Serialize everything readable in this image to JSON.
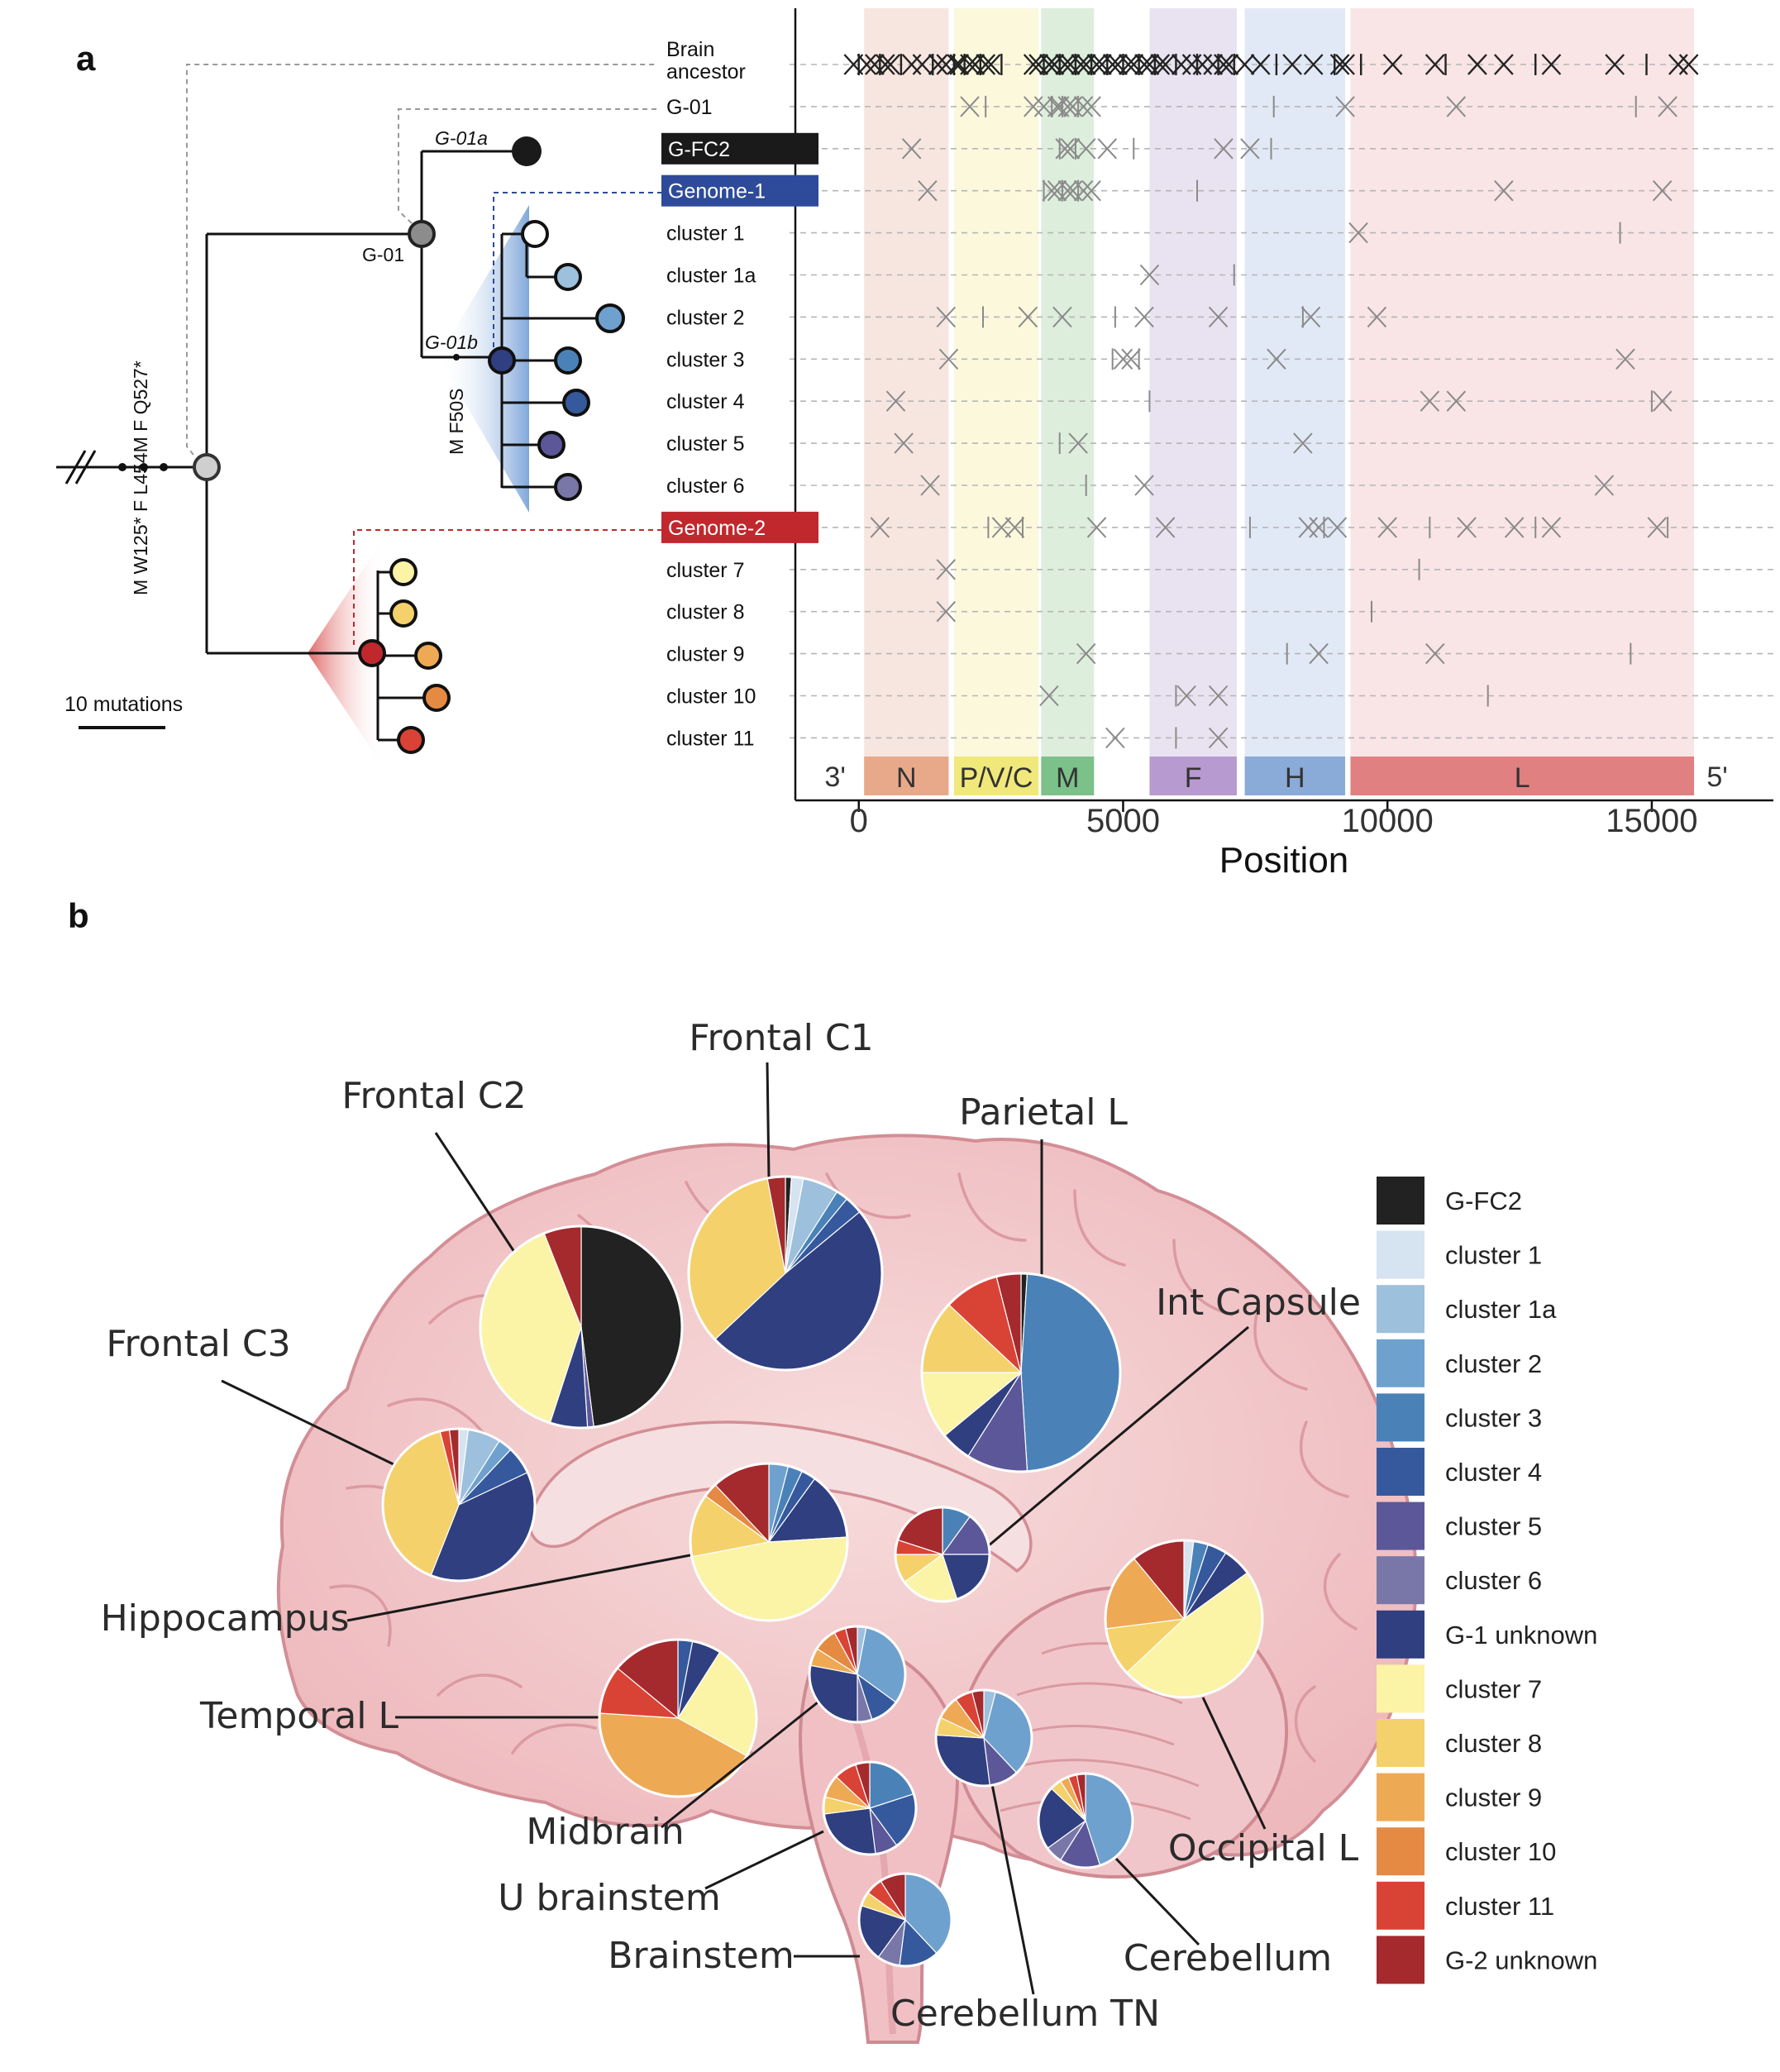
{
  "panel_a": {
    "label": "a",
    "tree": {
      "root_mutations": "M W125* F L454M F Q527*",
      "g01_mutation": "M F50S",
      "node_g01": "G-01",
      "node_g01a": "G-01a",
      "node_g01b": "G-01b",
      "scale_label": "10 mutations"
    },
    "rows": [
      {
        "label": "Brain\nancestor",
        "kind": "plain",
        "color": ""
      },
      {
        "label": "G-01",
        "kind": "plain",
        "color": ""
      },
      {
        "label": "G-FC2",
        "kind": "box",
        "color": "#1a1a1a"
      },
      {
        "label": "Genome-1",
        "kind": "box",
        "color": "#2e4a9a"
      },
      {
        "label": "cluster 1",
        "kind": "plain",
        "color": ""
      },
      {
        "label": "cluster 1a",
        "kind": "plain",
        "color": ""
      },
      {
        "label": "cluster 2",
        "kind": "plain",
        "color": ""
      },
      {
        "label": "cluster 3",
        "kind": "plain",
        "color": ""
      },
      {
        "label": "cluster 4",
        "kind": "plain",
        "color": ""
      },
      {
        "label": "cluster 5",
        "kind": "plain",
        "color": ""
      },
      {
        "label": "cluster 6",
        "kind": "plain",
        "color": ""
      },
      {
        "label": "Genome-2",
        "kind": "box",
        "color": "#c0282d"
      },
      {
        "label": "cluster 7",
        "kind": "plain",
        "color": ""
      },
      {
        "label": "cluster 8",
        "kind": "plain",
        "color": ""
      },
      {
        "label": "cluster 9",
        "kind": "plain",
        "color": ""
      },
      {
        "label": "cluster 10",
        "kind": "plain",
        "color": ""
      },
      {
        "label": "cluster 11",
        "kind": "plain",
        "color": ""
      }
    ],
    "chart_data": {
      "type": "scatter",
      "xlabel": "Position",
      "xlim": [
        -1200,
        17300
      ],
      "xticks": [
        0,
        5000,
        10000,
        15000
      ],
      "end_labels": [
        "3'",
        "5'"
      ],
      "genes": [
        {
          "name": "N",
          "start": 100,
          "end": 1700,
          "color": "#e8a98a",
          "shade": "#f7e6e0"
        },
        {
          "name": "P/V/C",
          "start": 1800,
          "end": 3400,
          "color": "#f0e87a",
          "shade": "#fbf8dc"
        },
        {
          "name": "M",
          "start": 3450,
          "end": 4450,
          "color": "#7cc08a",
          "shade": "#ddeedd"
        },
        {
          "name": "F",
          "start": 5500,
          "end": 7150,
          "color": "#b79ad0",
          "shade": "#e9e3f1"
        },
        {
          "name": "H",
          "start": 7300,
          "end": 9200,
          "color": "#8aaad8",
          "shade": "#e2e9f6"
        },
        {
          "name": "L",
          "start": 9300,
          "end": 15800,
          "color": "#e08080",
          "shade": "#f9e4e6"
        }
      ],
      "mutations_x": [
        [
          -100,
          0,
          150,
          300,
          400,
          500,
          600,
          800,
          1000,
          1200,
          1400,
          1500,
          1650,
          1800,
          1850,
          1900,
          2000,
          2100,
          2200,
          2300,
          2400,
          2500,
          2700,
          3300,
          3400,
          3500,
          3600,
          3700,
          3800,
          3900,
          4000,
          4100,
          4200,
          4300,
          4400,
          4500,
          4600,
          4700,
          4800,
          4900,
          5000,
          5100,
          5200,
          5300,
          5400,
          5500,
          5600,
          5700,
          5800,
          6000,
          6100,
          6300,
          6400,
          6500,
          6700,
          6800,
          6900,
          7000,
          7100,
          7300,
          7600,
          7900,
          8200,
          8600,
          9000,
          9100,
          9200,
          9500,
          10100,
          10900,
          11100,
          11700,
          12200,
          12800,
          13100,
          14300,
          14900,
          15500,
          15700
        ],
        [
          2100,
          2400,
          3300,
          3500,
          3650,
          3750,
          3800,
          3850,
          3950,
          4050,
          4150,
          4250,
          4400,
          7850,
          9200,
          11300,
          14700,
          15300
        ],
        [
          1000,
          3800,
          3900,
          4000,
          4100,
          4300,
          4700,
          5200,
          6900,
          7400,
          7800
        ],
        [
          1300,
          3500,
          3650,
          3750,
          3850,
          3950,
          4050,
          4150,
          4250,
          4400,
          6400,
          12200,
          15200
        ],
        [
          9450,
          14400
        ],
        [
          5500,
          7100
        ],
        [
          1650,
          2350,
          3200,
          3850,
          4850,
          5400,
          6800,
          8400,
          8550,
          9800
        ],
        [
          1700,
          4800,
          5000,
          5150,
          5300,
          7900,
          14500
        ],
        [
          700,
          5500,
          10800,
          11300,
          15000,
          15200
        ],
        [
          850,
          3800,
          4150,
          8400
        ],
        [
          1350,
          4300,
          5400,
          14100
        ],
        [
          400,
          2450,
          2700,
          2950,
          3100,
          4500,
          5800,
          7400,
          8500,
          8700,
          8800,
          9050,
          10000,
          10800,
          11500,
          12400,
          12800,
          13100,
          15100,
          15300
        ],
        [
          1650,
          10600
        ],
        [
          1650,
          9700
        ],
        [
          4300,
          8100,
          8700,
          10900,
          14600
        ],
        [
          3600,
          6000,
          6200,
          6800,
          11900
        ],
        [
          4850,
          6000,
          6800
        ]
      ]
    }
  },
  "panel_b": {
    "label": "b",
    "chart_data": {
      "type": "pie",
      "legend": [
        {
          "name": "G-FC2",
          "color": "#222222"
        },
        {
          "name": "cluster 1",
          "color": "#d6e3f1"
        },
        {
          "name": "cluster 1a",
          "color": "#9dc0dc"
        },
        {
          "name": "cluster 2",
          "color": "#6fa1cf"
        },
        {
          "name": "cluster 3",
          "color": "#4a82b8"
        },
        {
          "name": "cluster 4",
          "color": "#35599c"
        },
        {
          "name": "cluster 5",
          "color": "#5c5799"
        },
        {
          "name": "cluster 6",
          "color": "#7977a8"
        },
        {
          "name": "G-1 unknown",
          "color": "#2f3f80"
        },
        {
          "name": "cluster 7",
          "color": "#fbf3a6"
        },
        {
          "name": "cluster 8",
          "color": "#f4d16b"
        },
        {
          "name": "cluster 9",
          "color": "#eea954"
        },
        {
          "name": "cluster 10",
          "color": "#e58a43"
        },
        {
          "name": "cluster 11",
          "color": "#d94336"
        },
        {
          "name": "G-2 unknown",
          "color": "#a42a2e"
        }
      ],
      "pies": [
        {
          "name": "Frontal C2",
          "values": {
            "G-FC2": 48,
            "G-1 unknown": 6,
            "cluster 5": 1,
            "cluster 7": 39,
            "G-2 unknown": 6
          }
        },
        {
          "name": "Frontal C1",
          "values": {
            "G-FC2": 1,
            "cluster 1": 2,
            "cluster 1a": 6,
            "cluster 3": 2,
            "cluster 4": 3,
            "G-1 unknown": 49,
            "cluster 8": 34,
            "G-2 unknown": 3
          }
        },
        {
          "name": "Parietal L",
          "values": {
            "G-FC2": 1,
            "cluster 3": 48,
            "cluster 5": 10,
            "G-1 unknown": 5,
            "cluster 7": 11,
            "cluster 8": 12,
            "cluster 11": 9,
            "G-2 unknown": 4
          }
        },
        {
          "name": "Frontal C3",
          "values": {
            "cluster 1": 2,
            "cluster 1a": 7,
            "cluster 2": 3,
            "cluster 4": 6,
            "G-1 unknown": 38,
            "cluster 8": 40,
            "cluster 11": 2,
            "G-2 unknown": 2
          }
        },
        {
          "name": "Hippocampus",
          "values": {
            "cluster 2": 4,
            "cluster 3": 3,
            "cluster 4": 3,
            "G-1 unknown": 14,
            "cluster 7": 48,
            "cluster 8": 13,
            "cluster 10": 3,
            "G-2 unknown": 12
          }
        },
        {
          "name": "Int Capsule",
          "values": {
            "cluster 3": 10,
            "cluster 5": 15,
            "G-1 unknown": 20,
            "cluster 7": 20,
            "cluster 8": 10,
            "cluster 11": 5,
            "G-2 unknown": 20
          }
        },
        {
          "name": "Temporal L",
          "values": {
            "cluster 4": 3,
            "G-1 unknown": 6,
            "cluster 7": 24,
            "cluster 9": 43,
            "cluster 11": 10,
            "G-2 unknown": 14
          }
        },
        {
          "name": "Midbrain",
          "values": {
            "cluster 1a": 3,
            "cluster 2": 32,
            "cluster 4": 10,
            "cluster 6": 5,
            "G-1 unknown": 28,
            "cluster 9": 6,
            "cluster 10": 8,
            "cluster 11": 4,
            "G-2 unknown": 4
          }
        },
        {
          "name": "U brainstem",
          "values": {
            "cluster 3": 20,
            "cluster 4": 20,
            "cluster 5": 8,
            "G-1 unknown": 25,
            "cluster 8": 6,
            "cluster 9": 8,
            "cluster 11": 8,
            "G-2 unknown": 5
          }
        },
        {
          "name": "Brainstem",
          "values": {
            "cluster 2": 38,
            "cluster 4": 14,
            "cluster 6": 8,
            "G-1 unknown": 20,
            "cluster 8": 5,
            "cluster 11": 6,
            "G-2 unknown": 9
          }
        },
        {
          "name": "Cerebellum TN",
          "values": {
            "cluster 1a": 4,
            "cluster 2": 34,
            "cluster 5": 10,
            "G-1 unknown": 28,
            "cluster 8": 6,
            "cluster 9": 8,
            "cluster 11": 6,
            "G-2 unknown": 4
          }
        },
        {
          "name": "Cerebellum",
          "values": {
            "cluster 2": 45,
            "cluster 5": 14,
            "cluster 6": 6,
            "G-1 unknown": 22,
            "cluster 8": 4,
            "cluster 9": 3,
            "cluster 11": 3,
            "G-2 unknown": 3
          }
        },
        {
          "name": "Occipital L",
          "values": {
            "cluster 1": 2,
            "cluster 3": 3,
            "cluster 4": 4,
            "G-1 unknown": 6,
            "cluster 7": 48,
            "cluster 8": 10,
            "cluster 9": 16,
            "G-2 unknown": 11
          }
        }
      ]
    }
  }
}
